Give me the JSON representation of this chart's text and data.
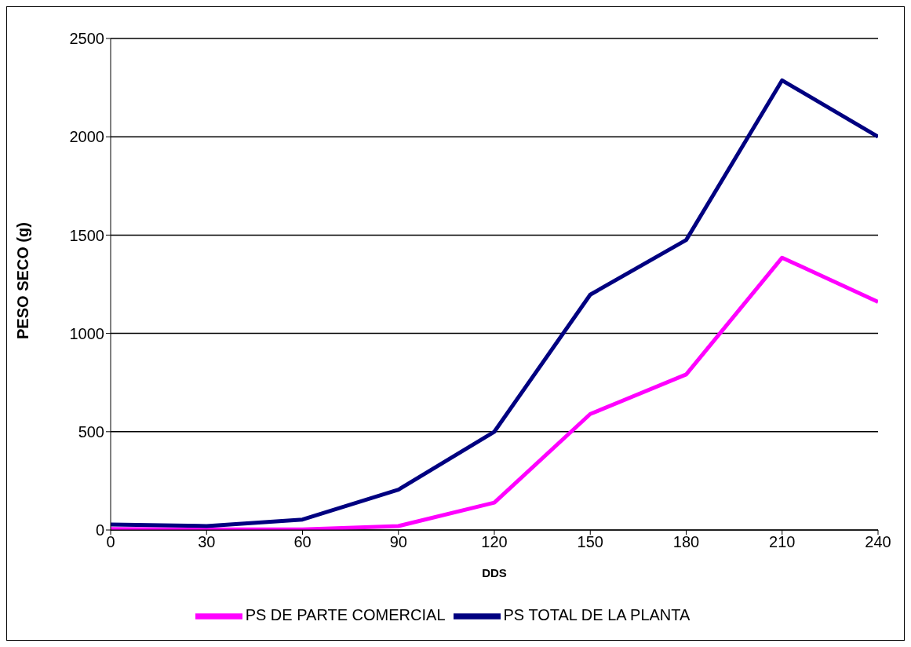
{
  "chart_data": {
    "type": "line",
    "xlabel": "DDS",
    "ylabel": "PESO SECO (g)",
    "x": [
      0,
      30,
      60,
      90,
      120,
      150,
      180,
      210,
      240
    ],
    "series": [
      {
        "name": "PS DE PARTE COMERCIAL",
        "color": "#ff00ff",
        "values": [
          5,
          3,
          3,
          20,
          139,
          590,
          791,
          1385,
          1160
        ]
      },
      {
        "name": "PS TOTAL DE LA PLANTA",
        "color": "#000080",
        "values": [
          28,
          20,
          53,
          205,
          500,
          1197,
          1475,
          2287,
          2000
        ]
      }
    ],
    "xlim": [
      0,
      240
    ],
    "xticks": [
      0,
      30,
      60,
      90,
      120,
      150,
      180,
      210,
      240
    ],
    "ylim": [
      0,
      2500
    ],
    "yticks": [
      0,
      500,
      1000,
      1500,
      2000,
      2500
    ],
    "grid": "y",
    "legend": "bottom",
    "marker": "none",
    "line_style": "solid"
  }
}
